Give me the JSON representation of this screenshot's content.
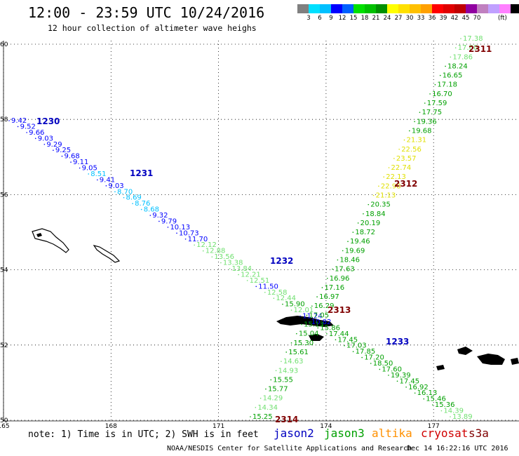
{
  "title": "12:00 - 23:59 UTC 10/24/2016",
  "subtitle": "12 hour collection of altimeter wave heighs",
  "legend": {
    "unit": "(ft)",
    "colors": [
      "#808080",
      "#00e0ff",
      "#00c0ff",
      "#0000ff",
      "#0060ff",
      "#00e000",
      "#00c000",
      "#009000",
      "#ffff00",
      "#ffe000",
      "#ffc000",
      "#ffa000",
      "#ff0000",
      "#e00000",
      "#c00000",
      "#9000a0",
      "#c080c0",
      "#c0a0ff",
      "#ff80ff",
      "#000000"
    ],
    "labels": [
      "3",
      "6",
      "9",
      "12",
      "15",
      "18",
      "21",
      "24",
      "27",
      "30",
      "33",
      "36",
      "39",
      "42",
      "45",
      "70"
    ]
  },
  "axes": {
    "lon_ticks": [
      "165",
      "168",
      "171",
      "174",
      "177"
    ],
    "lat_ticks": [
      "50",
      "52",
      "54",
      "56",
      "58",
      "60"
    ]
  },
  "tracks": [
    {
      "id": "west-east",
      "values": [
        {
          "v": "9.42",
          "c": "#0000ff"
        },
        {
          "v": "9.52",
          "c": "#0000ff"
        },
        {
          "v": "9.66",
          "c": "#0000ff"
        },
        {
          "v": "9.03",
          "c": "#0000ff"
        },
        {
          "v": "9.29",
          "c": "#0000ff"
        },
        {
          "v": "9.25",
          "c": "#0000ff"
        },
        {
          "v": "9.68",
          "c": "#0000ff"
        },
        {
          "v": "9.11",
          "c": "#0000ff"
        },
        {
          "v": "9.05",
          "c": "#0000ff"
        },
        {
          "v": "8.51",
          "c": "#00c0ff"
        },
        {
          "v": "9.41",
          "c": "#0000ff"
        },
        {
          "v": "9.03",
          "c": "#0000ff"
        },
        {
          "v": "8.70",
          "c": "#00c0ff"
        },
        {
          "v": "8.69",
          "c": "#00c0ff"
        },
        {
          "v": "8.76",
          "c": "#00c0ff"
        },
        {
          "v": "8.68",
          "c": "#00c0ff"
        },
        {
          "v": "9.32",
          "c": "#0000ff"
        },
        {
          "v": "9.79",
          "c": "#0000ff"
        },
        {
          "v": "10.13",
          "c": "#0000ff"
        },
        {
          "v": "10.73",
          "c": "#0000ff"
        },
        {
          "v": "11.70",
          "c": "#0000ff"
        },
        {
          "v": "12.12",
          "c": "#70e070"
        },
        {
          "v": "12.88",
          "c": "#70e070"
        },
        {
          "v": "13.56",
          "c": "#70e070"
        },
        {
          "v": "13.38",
          "c": "#70e070"
        },
        {
          "v": "13.84",
          "c": "#70e070"
        },
        {
          "v": "12.21",
          "c": "#70e070"
        },
        {
          "v": "12.51",
          "c": "#70e070"
        },
        {
          "v": "11.50",
          "c": "#0000ff"
        },
        {
          "v": "12.58",
          "c": "#70e070"
        },
        {
          "v": "12.44",
          "c": "#70e070"
        },
        {
          "v": "15.90",
          "c": "#00a000"
        },
        {
          "v": "12.01",
          "c": "#70e070"
        },
        {
          "v": "11.24",
          "c": "#0000ff"
        },
        {
          "v": "10.82",
          "c": "#0000ff"
        },
        {
          "v": "15.86",
          "c": "#00a000"
        },
        {
          "v": "17.44",
          "c": "#00a000"
        },
        {
          "v": "17.45",
          "c": "#00a000"
        },
        {
          "v": "17.03",
          "c": "#00a000"
        },
        {
          "v": "17.85",
          "c": "#00a000"
        },
        {
          "v": "17.20",
          "c": "#00a000"
        },
        {
          "v": "18.50",
          "c": "#00a000"
        },
        {
          "v": "17.60",
          "c": "#00a000"
        },
        {
          "v": "19.39",
          "c": "#00a000"
        },
        {
          "v": "17.45",
          "c": "#00a000"
        },
        {
          "v": "16.92",
          "c": "#00a000"
        },
        {
          "v": "16.13",
          "c": "#00a000"
        },
        {
          "v": "15.46",
          "c": "#00a000"
        },
        {
          "v": "15.36",
          "c": "#00a000"
        },
        {
          "v": "14.39",
          "c": "#70e070"
        },
        {
          "v": "13.89",
          "c": "#70e070"
        }
      ]
    },
    {
      "id": "north-south",
      "values": [
        {
          "v": "17.38",
          "c": "#70e070"
        },
        {
          "v": "17.60",
          "c": "#70e070"
        },
        {
          "v": "17.86",
          "c": "#70e070"
        },
        {
          "v": "18.24",
          "c": "#00a000"
        },
        {
          "v": "16.65",
          "c": "#00a000"
        },
        {
          "v": "17.18",
          "c": "#00a000"
        },
        {
          "v": "16.70",
          "c": "#00a000"
        },
        {
          "v": "17.59",
          "c": "#00a000"
        },
        {
          "v": "17.75",
          "c": "#00a000"
        },
        {
          "v": "19.36",
          "c": "#00a000"
        },
        {
          "v": "19.68",
          "c": "#00a000"
        },
        {
          "v": "21.31",
          "c": "#e0e000"
        },
        {
          "v": "22.56",
          "c": "#e0e000"
        },
        {
          "v": "23.57",
          "c": "#e0e000"
        },
        {
          "v": "22.74",
          "c": "#e0e000"
        },
        {
          "v": "22.13",
          "c": "#e0e000"
        },
        {
          "v": "22.98",
          "c": "#e0e000"
        },
        {
          "v": "21.13",
          "c": "#e0e000"
        },
        {
          "v": "20.35",
          "c": "#00a000"
        },
        {
          "v": "18.84",
          "c": "#00a000"
        },
        {
          "v": "20.19",
          "c": "#00a000"
        },
        {
          "v": "18.72",
          "c": "#00a000"
        },
        {
          "v": "19.46",
          "c": "#00a000"
        },
        {
          "v": "19.69",
          "c": "#00a000"
        },
        {
          "v": "18.46",
          "c": "#00a000"
        },
        {
          "v": "17.63",
          "c": "#00a000"
        },
        {
          "v": "16.96",
          "c": "#00a000"
        },
        {
          "v": "17.16",
          "c": "#00a000"
        },
        {
          "v": "16.97",
          "c": "#00a000"
        },
        {
          "v": "16.29",
          "c": "#00a000"
        },
        {
          "v": "17.05",
          "c": "#00a000"
        },
        {
          "v": "15.13",
          "c": "#00a000"
        },
        {
          "v": "15.04",
          "c": "#00a000"
        },
        {
          "v": "15.30",
          "c": "#00a000"
        },
        {
          "v": "15.61",
          "c": "#00a000"
        },
        {
          "v": "14.63",
          "c": "#70e070"
        },
        {
          "v": "14.93",
          "c": "#70e070"
        },
        {
          "v": "15.55",
          "c": "#00a000"
        },
        {
          "v": "15.77",
          "c": "#00a000"
        },
        {
          "v": "14.29",
          "c": "#70e070"
        },
        {
          "v": "14.34",
          "c": "#70e070"
        },
        {
          "v": "15.25",
          "c": "#00a000"
        }
      ]
    }
  ],
  "pass_labels": [
    {
      "text": "1230",
      "c": "#0000c0"
    },
    {
      "text": "1231",
      "c": "#0000c0"
    },
    {
      "text": "1232",
      "c": "#0000c0"
    },
    {
      "text": "1233",
      "c": "#0000c0"
    },
    {
      "text": "2311",
      "c": "#800000"
    },
    {
      "text": "2312",
      "c": "#800000"
    },
    {
      "text": "2313",
      "c": "#800000"
    },
    {
      "text": "2314",
      "c": "#800000"
    }
  ],
  "note": "note: 1) Time is in UTC; 2) SWH is in feet",
  "satellites": [
    {
      "name": "jason2",
      "color": "#0000c0"
    },
    {
      "name": "jason3",
      "color": "#00a000"
    },
    {
      "name": "altika",
      "color": "#ff9000"
    },
    {
      "name": "cryosat",
      "color": "#d00000"
    },
    {
      "name": "s3a",
      "color": "#800000"
    }
  ],
  "credit": "NOAA/NESDIS Center for Satellite Applications and Research",
  "timestamp": "Dec 14 16:22:16 UTC 2016"
}
